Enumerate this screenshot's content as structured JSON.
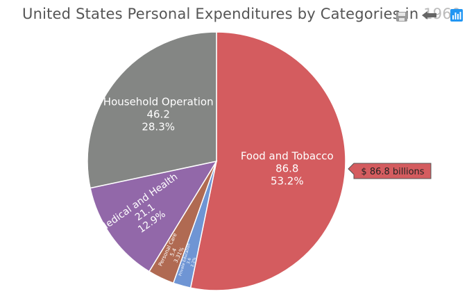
{
  "title_main": "United States Personal Expenditures by Categories in ",
  "title_year": "1960",
  "toolbar": {
    "icons": [
      "save-icon",
      "undo-icon",
      "chart-type-icon"
    ]
  },
  "chart_data": {
    "type": "pie",
    "title": "United States Personal Expenditures by Categories in 1960",
    "slices": [
      {
        "name": "Food and Tobacco",
        "value": 86.8,
        "percent": "53.2%",
        "color": "#d45c5f"
      },
      {
        "name": "Private Education",
        "value": 3.6,
        "percent": "2.2%",
        "color": "#6f95d4"
      },
      {
        "name": "Personal Care",
        "value": 5.4,
        "percent": "3.31%",
        "color": "#b06a52"
      },
      {
        "name": "Medical and Health",
        "value": 21.1,
        "percent": "12.9%",
        "color": "#9268a9"
      },
      {
        "name": "Household Operation",
        "value": 46.2,
        "percent": "28.3%",
        "color": "#848684"
      }
    ],
    "tooltip": "$ 86.8  billions"
  }
}
